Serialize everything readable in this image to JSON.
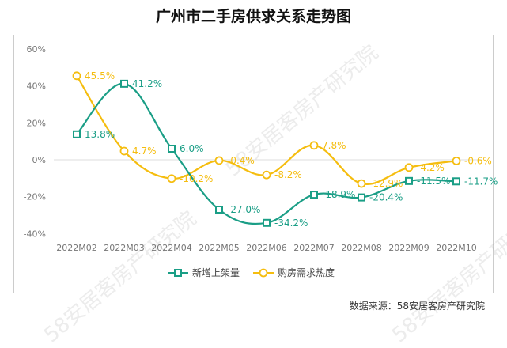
{
  "chart_data": {
    "type": "line",
    "title": "广州市二手房供求关系走势图",
    "categories": [
      "2022M02",
      "2022M03",
      "2022M04",
      "2022M05",
      "2022M06",
      "2022M07",
      "2022M08",
      "2022M09",
      "2022M10"
    ],
    "yticks": [
      "60%",
      "40%",
      "20%",
      "0%",
      "-20%",
      "-40%"
    ],
    "ylim": [
      -40,
      60
    ],
    "series": [
      {
        "name": "新增上架量",
        "color": "#1a9e86",
        "marker": "square",
        "values": [
          13.8,
          41.2,
          6.0,
          -27.0,
          -34.2,
          -18.9,
          -20.4,
          -11.5,
          -11.7
        ],
        "labels": [
          "13.8%",
          "41.2%",
          "6.0%",
          "-27.0%",
          "-34.2%",
          "-18.9%",
          "-20.4%",
          "-11.5%",
          "-11.7%"
        ]
      },
      {
        "name": "购房需求热度",
        "color": "#f5bd0f",
        "marker": "circle",
        "values": [
          45.5,
          4.7,
          -10.2,
          -0.4,
          -8.2,
          7.8,
          -12.9,
          -4.2,
          -0.6
        ],
        "labels": [
          "45.5%",
          "4.7%",
          "-10.2%",
          "-0.4%",
          "-8.2%",
          "7.8%",
          "-12.9%",
          "-4.2%",
          "-0.6%"
        ]
      }
    ],
    "legend": "bottom",
    "grid": false
  },
  "source": "数据来源：58安居客房产研究院",
  "watermark": "58安居客房产研究院"
}
